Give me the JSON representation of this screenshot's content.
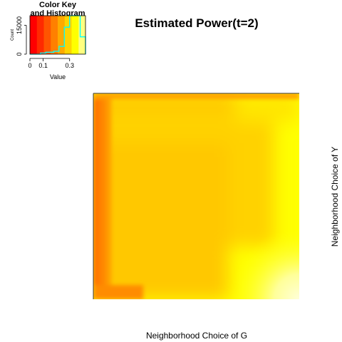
{
  "chart_data": {
    "type": "heatmap",
    "title": "Estimated Power(t=2)",
    "xlabel": "Neighborhood Choice of G",
    "ylabel": "Neighborhood Choice of Y",
    "color_scale": [
      "#ff0000",
      "#ff2a00",
      "#ff5500",
      "#ff8000",
      "#ffaa00",
      "#ffd400",
      "#ffff00",
      "#ffff80"
    ],
    "value_range": [
      0,
      0.42
    ],
    "heatmap_description": {
      "left_edge_value": 0.15,
      "interior_value": 0.3,
      "right_region_value": 0.38,
      "bottom_right_corner_value": 0.42
    },
    "color_key": {
      "title_line1": "Color Key",
      "title_line2": "and Histogram",
      "x_label": "Value",
      "y_label": "Count",
      "x_ticks": [
        "0",
        "0.1",
        "0.3"
      ],
      "x_tick_values": [
        0,
        0.1,
        0.3
      ],
      "y_ticks": [
        "0",
        "15000"
      ],
      "y_tick_values": [
        0,
        15000
      ],
      "y_max": 20000,
      "histogram_line_color": "#00ffff",
      "histogram": {
        "bin_edges": [
          0,
          0.08,
          0.12,
          0.18,
          0.22,
          0.26,
          0.3,
          0.36,
          0.38,
          0.42
        ],
        "counts": [
          0,
          600,
          1000,
          1500,
          4000,
          14000,
          20000,
          20000,
          9000
        ]
      }
    }
  }
}
